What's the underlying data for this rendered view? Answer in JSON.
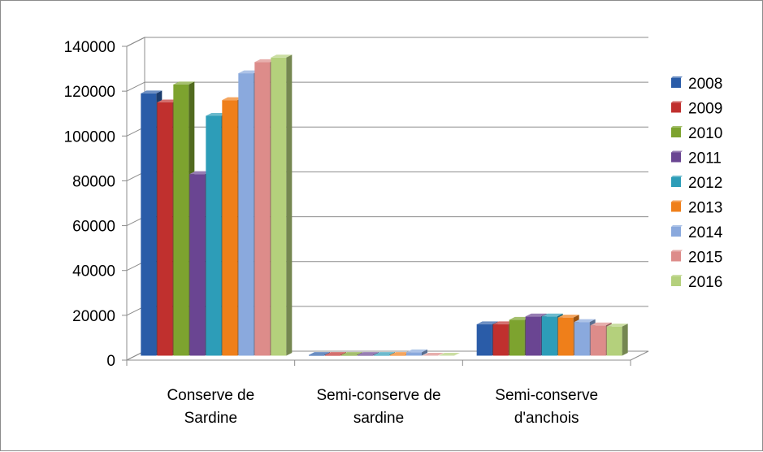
{
  "chart_data": {
    "type": "bar",
    "style": "3d-clustered-column",
    "categories": [
      [
        "Conserve de",
        "Sardine"
      ],
      [
        "Semi-conserve de",
        "sardine"
      ],
      [
        "Semi-conserve",
        "d'anchois"
      ]
    ],
    "series": [
      {
        "name": "2008",
        "color": "#2a5ca8",
        "values": [
          117000,
          300,
          14000
        ]
      },
      {
        "name": "2009",
        "color": "#c0302e",
        "values": [
          113000,
          300,
          14000
        ]
      },
      {
        "name": "2010",
        "color": "#7da32f",
        "values": [
          121000,
          300,
          16000
        ]
      },
      {
        "name": "2011",
        "color": "#6a4592",
        "values": [
          81000,
          300,
          17500
        ]
      },
      {
        "name": "2012",
        "color": "#2d9db8",
        "values": [
          107000,
          300,
          17500
        ]
      },
      {
        "name": "2013",
        "color": "#ef7f1a",
        "values": [
          114000,
          300,
          17000
        ]
      },
      {
        "name": "2014",
        "color": "#8aa9dd",
        "values": [
          126000,
          1500,
          15000
        ]
      },
      {
        "name": "2015",
        "color": "#dd8c8a",
        "values": [
          131000,
          0,
          13500
        ]
      },
      {
        "name": "2016",
        "color": "#b4d07c",
        "values": [
          133000,
          0,
          13000
        ]
      }
    ],
    "y_ticks": [
      "0",
      "20000",
      "40000",
      "60000",
      "80000",
      "100000",
      "120000",
      "140000"
    ],
    "ylim": [
      0,
      140000
    ],
    "grid": true,
    "legend_position": "right",
    "title": "",
    "xlabel": "",
    "ylabel": ""
  }
}
